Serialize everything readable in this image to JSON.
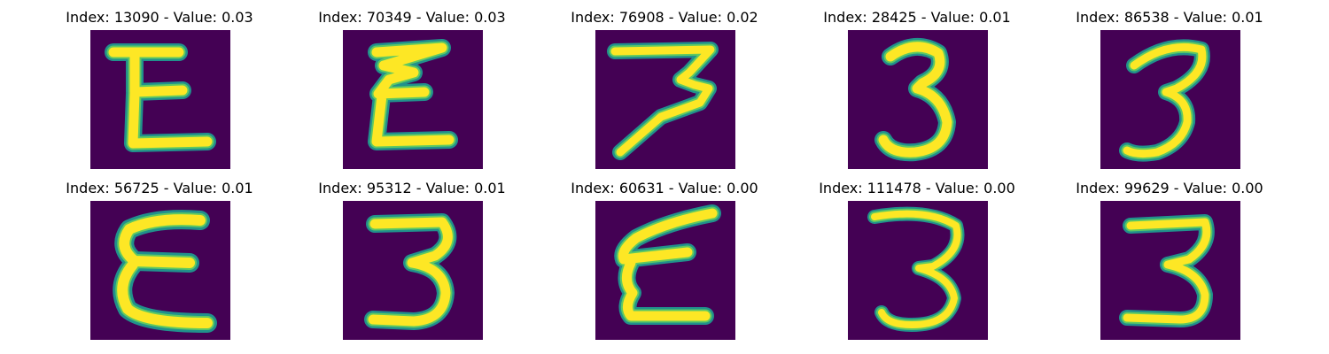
{
  "figure": {
    "background_color": "#440154",
    "glow_color": "#21918c",
    "mid_color": "#5ec962",
    "stroke_color": "#fde725",
    "panels": [
      {
        "title": "Index: 13090 - Value: 0.03",
        "glyph": "epsilon-block"
      },
      {
        "title": "Index: 70349 - Value: 0.03",
        "glyph": "epsilon-zigzag"
      },
      {
        "title": "Index: 76908 - Value: 0.02",
        "glyph": "seven-three"
      },
      {
        "title": "Index: 28425 - Value: 0.01",
        "glyph": "three-narrow"
      },
      {
        "title": "Index: 86538 - Value: 0.01",
        "glyph": "three-tilted"
      },
      {
        "title": "Index: 56725 - Value: 0.01",
        "glyph": "epsilon-round"
      },
      {
        "title": "Index: 95312 - Value: 0.01",
        "glyph": "three-wide"
      },
      {
        "title": "Index: 60631 - Value: 0.00",
        "glyph": "epsilon-slanted"
      },
      {
        "title": "Index: 111478 - Value: 0.00",
        "glyph": "three-open"
      },
      {
        "title": "Index: 99629 - Value: 0.00",
        "glyph": "three-flat"
      }
    ]
  }
}
